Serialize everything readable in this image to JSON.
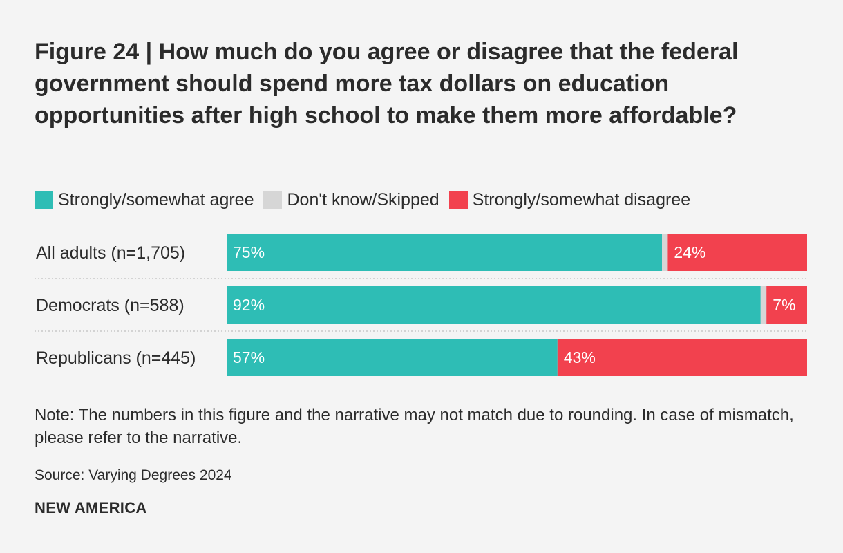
{
  "figure": {
    "title": "Figure 24 | How much do you agree or disagree that the federal government should spend more tax dollars on education opportunities after high school to make them more affordable?",
    "note": "Note: The numbers in this figure and the narrative may not match due to rounding. In case of mismatch, please refer to the narrative.",
    "source": "Source: Varying Degrees 2024",
    "brand": "NEW AMERICA"
  },
  "colors": {
    "agree": "#2ebdb5",
    "dont_know": "#d6d6d6",
    "disagree": "#f2414e",
    "divider": "#c8c8c8",
    "label_text": "#ffffff",
    "row_label": "#2b2b2b"
  },
  "legend": {
    "agree": "Strongly/somewhat agree",
    "dont_know": "Don't know/Skipped",
    "disagree": "Strongly/somewhat disagree"
  },
  "chart_data": {
    "type": "bar",
    "orientation": "horizontal",
    "stacked": true,
    "title": "Figure 24 | How much do you agree or disagree that the federal government should spend more tax dollars on education opportunities after high school to make them more affordable?",
    "categories": [
      "All adults (n=1,705)",
      "Democrats (n=588)",
      "Republicans (n=445)"
    ],
    "series": [
      {
        "name": "Strongly/somewhat agree",
        "key": "agree",
        "values": [
          75,
          92,
          57
        ],
        "labels": [
          "75%",
          "92%",
          "57%"
        ]
      },
      {
        "name": "Don't know/Skipped",
        "key": "dont_know",
        "values": [
          1,
          1,
          0
        ],
        "labels": [
          "",
          "",
          ""
        ]
      },
      {
        "name": "Strongly/somewhat disagree",
        "key": "disagree",
        "values": [
          24,
          7,
          43
        ],
        "labels": [
          "24%",
          "7%",
          "43%"
        ]
      }
    ],
    "xlim": [
      0,
      100
    ],
    "legend": "top-left",
    "grid": false
  }
}
